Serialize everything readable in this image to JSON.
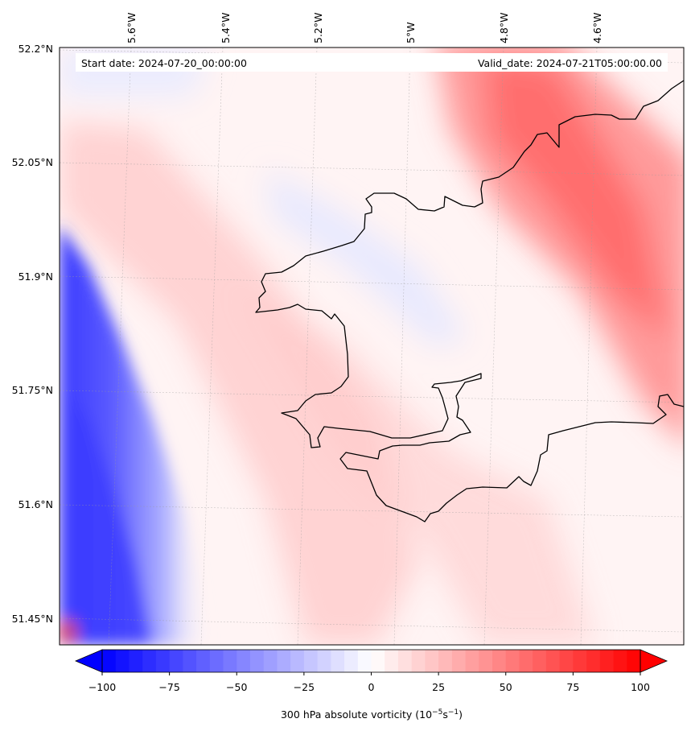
{
  "map": {
    "start_date_label": "Start date: 2024-07-20_00:00:00",
    "valid_date_label": "Valid_date: 2024-07-21T05:00:00.00",
    "lon_ticks": [
      "5.6°W",
      "5.4°W",
      "5.2°W",
      "5°W",
      "4.8°W",
      "4.6°W"
    ],
    "lat_ticks": [
      "52.2°N",
      "52.05°N",
      "51.9°N",
      "51.75°N",
      "51.6°N",
      "51.45°N"
    ]
  },
  "colorbar": {
    "label_text": "300 hPa absolute vorticity (10",
    "label_exp1": "−5",
    "label_mid": "s",
    "label_exp2": "−1",
    "label_close": ")",
    "ticks": [
      "−100",
      "−75",
      "−50",
      "−25",
      "0",
      "25",
      "50",
      "75",
      "100"
    ],
    "min": -100,
    "max": 100,
    "n_levels": 40,
    "color_low": "#0000ff",
    "color_mid": "#ffffff",
    "color_high": "#ff0000"
  }
}
